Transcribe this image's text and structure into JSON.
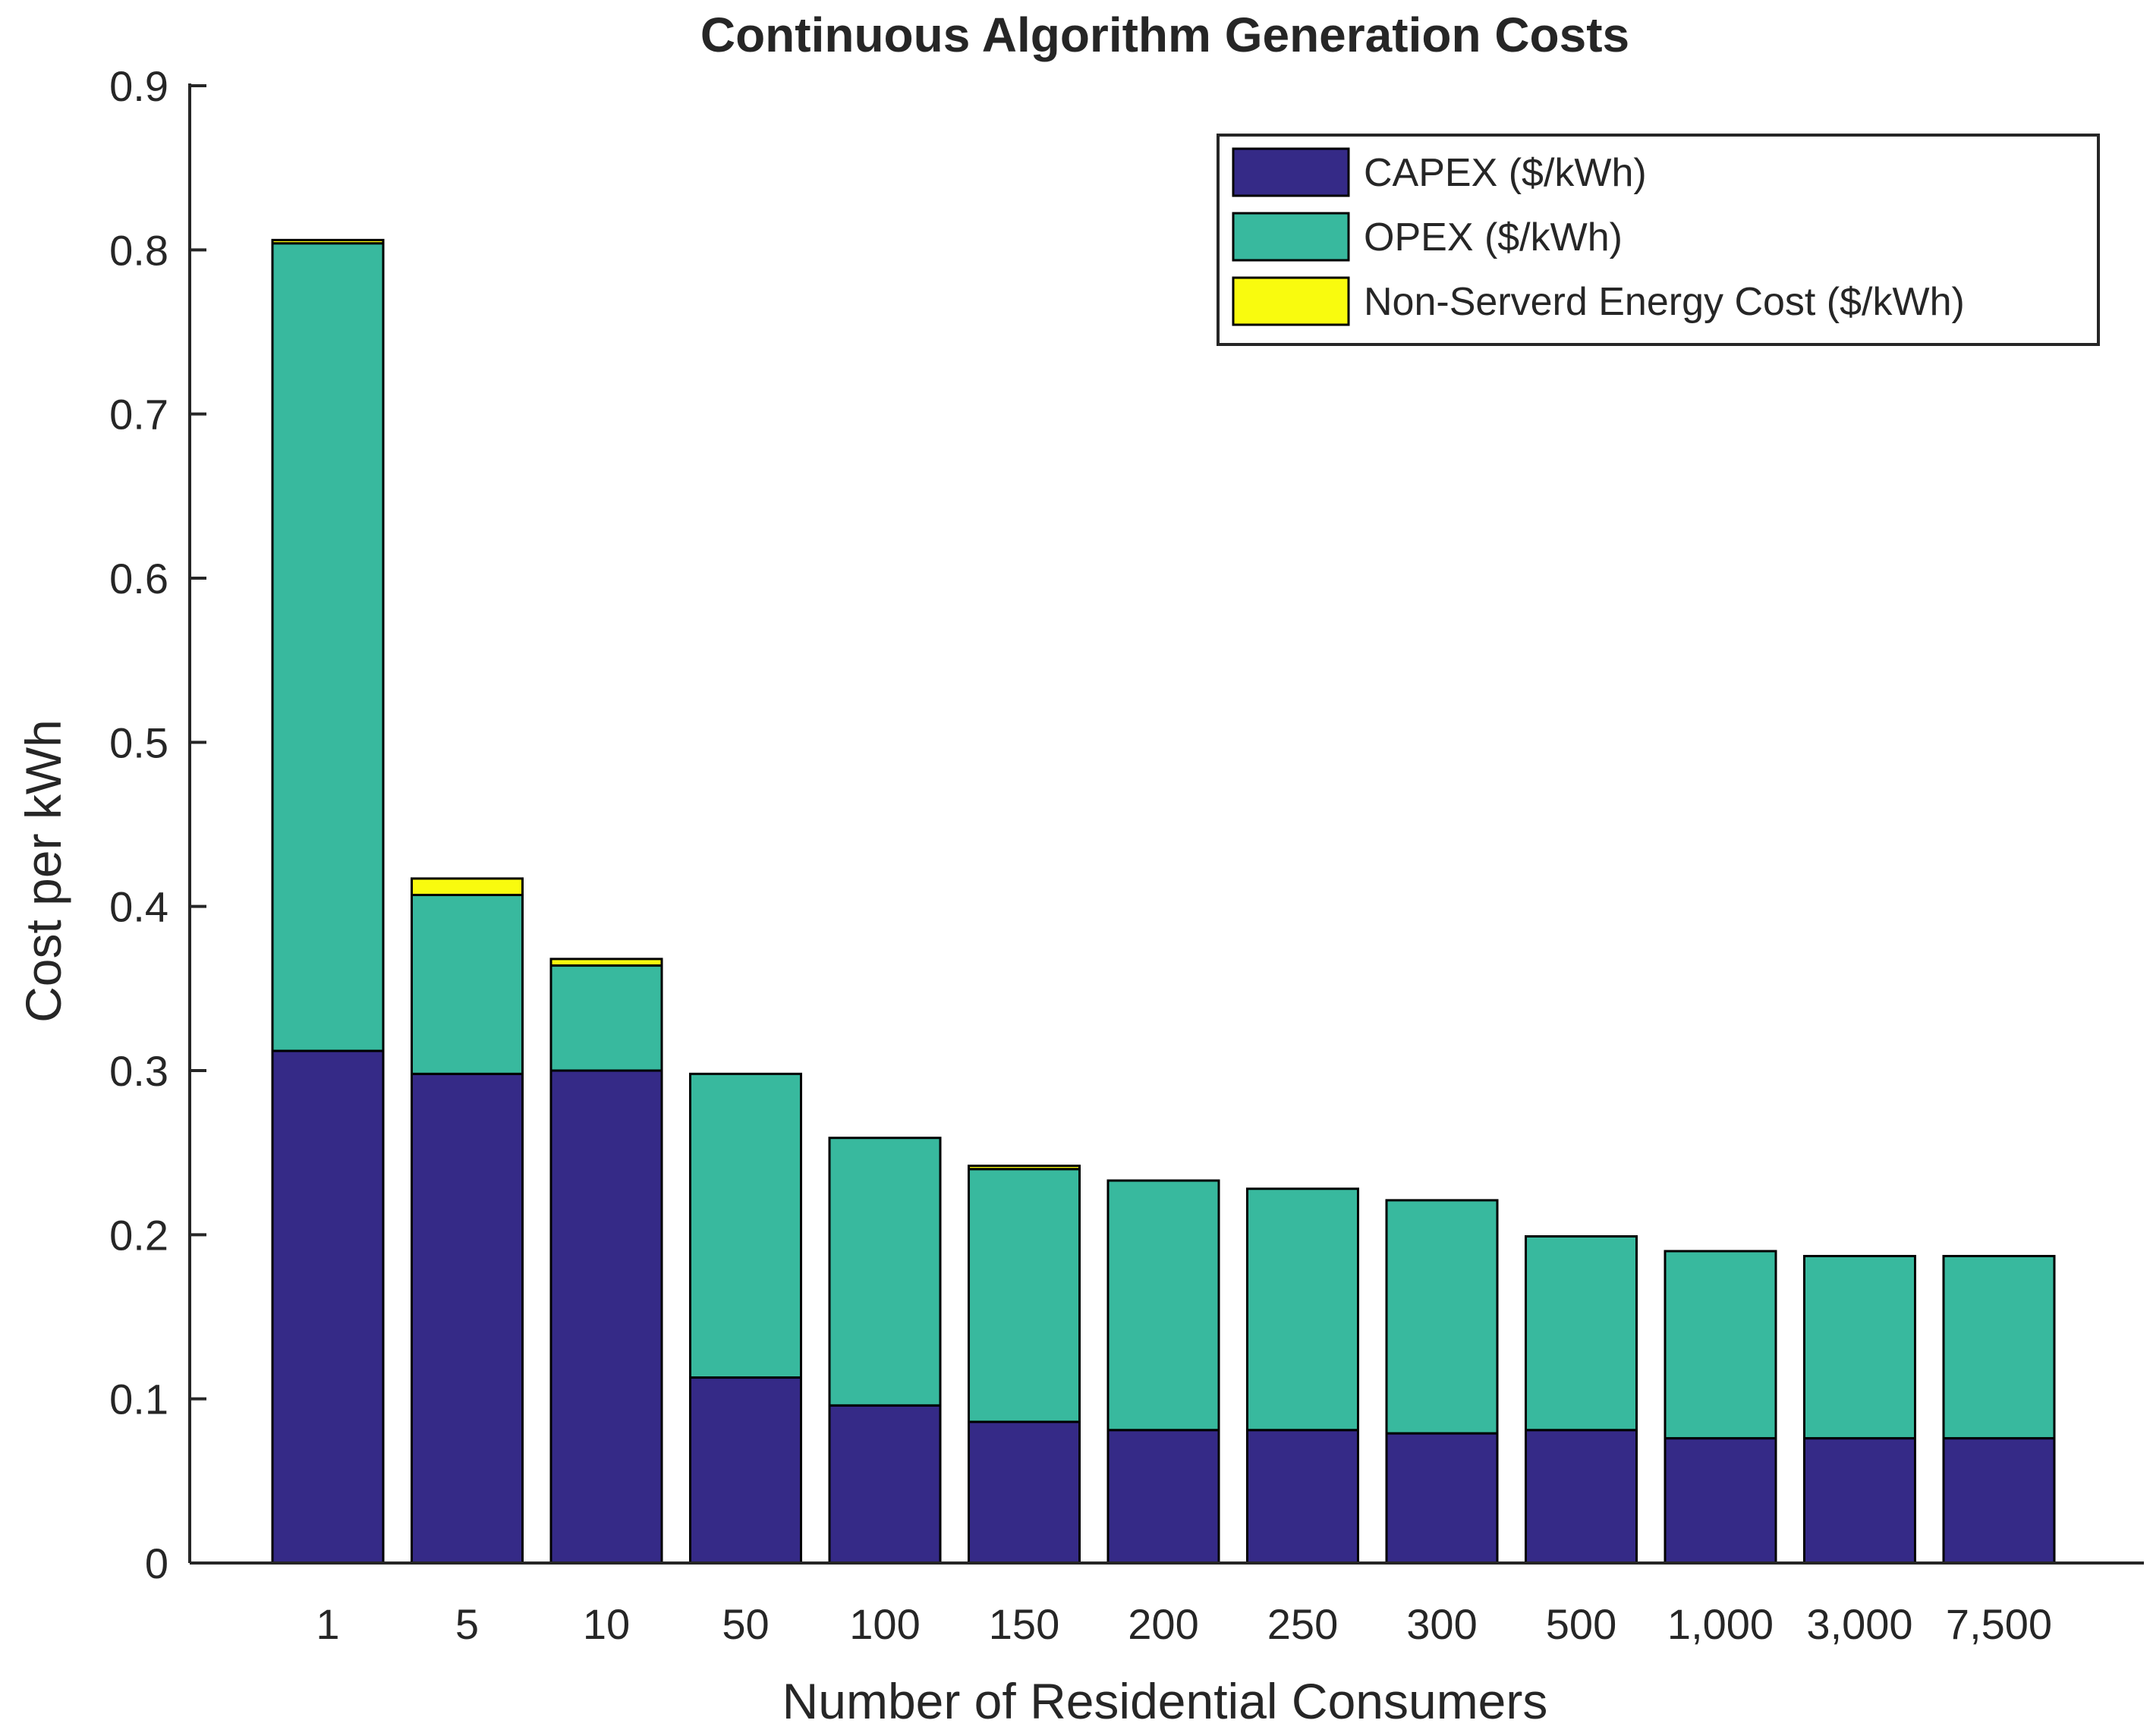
{
  "chart_data": {
    "type": "bar",
    "stacked": true,
    "title": "Continuous Algorithm Generation Costs",
    "xlabel": "Number of Residential Consumers",
    "ylabel": "Cost per kWh",
    "ylim": [
      0,
      0.9
    ],
    "yticks": [
      "0",
      "0.1",
      "0.2",
      "0.3",
      "0.4",
      "0.5",
      "0.6",
      "0.7",
      "0.8",
      "0.9"
    ],
    "grid": false,
    "legend_position": "top-right",
    "categories": [
      "1",
      "5",
      "10",
      "50",
      "100",
      "150",
      "200",
      "250",
      "300",
      "500",
      "1,000",
      "3,000",
      "7,500"
    ],
    "series": [
      {
        "name": "CAPEX ($/kWh)",
        "color": "#352A87",
        "values": [
          0.312,
          0.298,
          0.3,
          0.113,
          0.096,
          0.086,
          0.081,
          0.081,
          0.079,
          0.081,
          0.076,
          0.076,
          0.076
        ]
      },
      {
        "name": "OPEX ($/kWh)",
        "color": "#38B99E",
        "values": [
          0.492,
          0.109,
          0.064,
          0.185,
          0.163,
          0.154,
          0.152,
          0.147,
          0.142,
          0.118,
          0.114,
          0.111,
          0.111
        ]
      },
      {
        "name": "Non-Serverd Energy Cost ($/kWh)",
        "color": "#F9FB0E",
        "values": [
          0.002,
          0.01,
          0.004,
          0,
          0,
          0.002,
          0,
          0,
          0,
          0,
          0,
          0,
          0
        ]
      }
    ]
  }
}
